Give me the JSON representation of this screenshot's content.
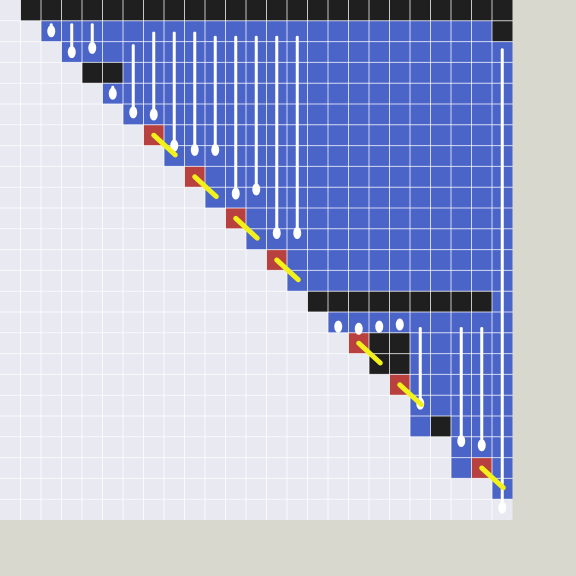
{
  "colors": {
    "background": "#d9d8ce",
    "empty": "#e8e9f1",
    "filled": "#4a64c7",
    "wall": "#1f1f1f",
    "hazard": "#b8413f",
    "drip": "#ffffff",
    "spark": "#f2f21a",
    "grid_line": "#ffffff"
  },
  "board": {
    "rows": 25,
    "cols": 25,
    "filled_ranges": [
      [],
      [
        2,
        24
      ],
      [
        3,
        24
      ],
      [
        6,
        24
      ],
      [
        5,
        24
      ],
      [
        6,
        24
      ],
      [
        8,
        24
      ],
      [
        8,
        24
      ],
      [
        10,
        24
      ],
      [
        10,
        24
      ],
      [
        12,
        24
      ],
      [
        12,
        24
      ],
      [
        14,
        24
      ],
      [
        14,
        24
      ],
      [
        24,
        24
      ],
      [
        16,
        24
      ],
      [
        18,
        24
      ],
      [
        19,
        24
      ],
      [
        19,
        24
      ],
      [
        20,
        24
      ],
      [
        20,
        24
      ],
      [
        22,
        24
      ],
      [
        22,
        24
      ],
      [
        24,
        24
      ],
      []
    ],
    "walls": [
      [
        0,
        1
      ],
      [
        0,
        2
      ],
      [
        0,
        3
      ],
      [
        0,
        4
      ],
      [
        0,
        5
      ],
      [
        0,
        6
      ],
      [
        0,
        7
      ],
      [
        0,
        8
      ],
      [
        0,
        9
      ],
      [
        0,
        10
      ],
      [
        0,
        11
      ],
      [
        0,
        12
      ],
      [
        0,
        13
      ],
      [
        0,
        14
      ],
      [
        0,
        15
      ],
      [
        0,
        16
      ],
      [
        0,
        17
      ],
      [
        0,
        18
      ],
      [
        0,
        19
      ],
      [
        0,
        20
      ],
      [
        0,
        21
      ],
      [
        0,
        22
      ],
      [
        0,
        23
      ],
      [
        0,
        24
      ],
      [
        1,
        24
      ],
      [
        3,
        4
      ],
      [
        3,
        5
      ],
      [
        14,
        15
      ],
      [
        14,
        16
      ],
      [
        14,
        17
      ],
      [
        14,
        18
      ],
      [
        14,
        19
      ],
      [
        14,
        20
      ],
      [
        14,
        21
      ],
      [
        14,
        22
      ],
      [
        14,
        23
      ],
      [
        16,
        18
      ],
      [
        16,
        19
      ],
      [
        17,
        18
      ],
      [
        17,
        19
      ],
      [
        20,
        21
      ]
    ],
    "hazards": [
      [
        6,
        7
      ],
      [
        8,
        9
      ],
      [
        10,
        11
      ],
      [
        12,
        13
      ],
      [
        16,
        17
      ],
      [
        18,
        19
      ],
      [
        22,
        23
      ]
    ],
    "drips": [
      {
        "col": 2,
        "top": 1,
        "bottom": 1.6
      },
      {
        "col": 3,
        "top": 1,
        "bottom": 2.6
      },
      {
        "col": 4,
        "top": 1,
        "bottom": 2.4
      },
      {
        "col": 5,
        "top": 4,
        "bottom": 4.6
      },
      {
        "col": 6,
        "top": 2,
        "bottom": 5.5
      },
      {
        "col": 7,
        "top": 1.4,
        "bottom": 5.6
      },
      {
        "col": 8,
        "top": 1.4,
        "bottom": 7.1
      },
      {
        "col": 9,
        "top": 1.4,
        "bottom": 7.3
      },
      {
        "col": 10,
        "top": 1.6,
        "bottom": 7.3
      },
      {
        "col": 11,
        "top": 1.6,
        "bottom": 9.4
      },
      {
        "col": 12,
        "top": 1.6,
        "bottom": 9.2
      },
      {
        "col": 13,
        "top": 1.6,
        "bottom": 11.3
      },
      {
        "col": 14,
        "top": 1.6,
        "bottom": 11.3
      },
      {
        "col": 16,
        "top": 15.4,
        "bottom": 15.8
      },
      {
        "col": 17,
        "top": 15.4,
        "bottom": 15.9
      },
      {
        "col": 18,
        "top": 15.4,
        "bottom": 15.8
      },
      {
        "col": 19,
        "top": 15.3,
        "bottom": 15.7
      },
      {
        "col": 20,
        "top": 15.6,
        "bottom": 19.5
      },
      {
        "col": 22,
        "top": 15.6,
        "bottom": 21.3
      },
      {
        "col": 23,
        "top": 15.6,
        "bottom": 21.5
      },
      {
        "col": 24,
        "top": 2.2,
        "bottom": 24.5
      }
    ],
    "sparks": [
      {
        "row": 6,
        "col": 7
      },
      {
        "row": 8,
        "col": 9
      },
      {
        "row": 10,
        "col": 11
      },
      {
        "row": 12,
        "col": 13
      },
      {
        "row": 16,
        "col": 17
      },
      {
        "row": 18,
        "col": 19
      },
      {
        "row": 22,
        "col": 23
      }
    ]
  }
}
